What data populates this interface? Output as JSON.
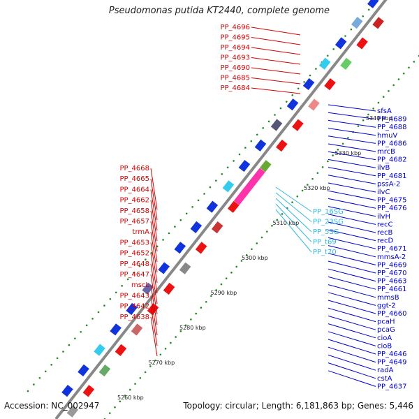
{
  "title": "Pseudomonas putida KT2440, complete genome",
  "accession": "Accession: NC_002947",
  "summary": "Topology: circular; Length: 6,181,863 bp; Genes: 5,446",
  "colors": {
    "backbone": "#808080",
    "forward_gene": "#ee1111",
    "reverse_gene": "#1133dd",
    "rna_gene": "#33ccee",
    "tick_dots": "#228b22",
    "red_label": "#d40000",
    "blue_label": "#0000cc",
    "cyan_label": "#33bbdd",
    "pink_block": "#ff33aa"
  },
  "scale_ticks": [
    "5260 kbp",
    "5270 kbp",
    "5280 kbp",
    "5290 kbp",
    "5300 kbp",
    "5310 kbp",
    "5320 kbp",
    "5330 kbp",
    "5340 kbp"
  ],
  "labels_left": [
    "PP_4696",
    "PP_4695",
    "PP_4694",
    "PP_4693",
    "PP_4690",
    "PP_4685",
    "PP_4684",
    "PP_4668",
    "PP_4665",
    "PP_4664",
    "PP_4662",
    "PP_4658",
    "PP_4657",
    "trmA",
    "PP_4653",
    "PP_4652",
    "PP_4648",
    "PP_4647",
    "mscL",
    "PP_4643",
    "PP_4642",
    "PP_4638"
  ],
  "labels_right": [
    "sfsA",
    "PP_4689",
    "PP_4688",
    "hmuV",
    "PP_4686",
    "mrcB",
    "PP_4682",
    "ilvB",
    "PP_4681",
    "pssA-2",
    "ilvC",
    "PP_4675",
    "PP_4676",
    "ilvH",
    "recC",
    "recB",
    "recD",
    "PP_4671",
    "mmsA-2",
    "PP_4669",
    "PP_4670",
    "PP_4663",
    "PP_4661",
    "mmsB",
    "ggt-2",
    "PP_4660",
    "pcaH",
    "pcaG",
    "cioA",
    "cioB",
    "PP_4646",
    "PP_4649",
    "radA",
    "cstA",
    "PP_4637"
  ],
  "labels_rna": [
    "PP_16SG",
    "PP_23SG",
    "PP_5SG",
    "PP_t69",
    "PP_t70"
  ]
}
